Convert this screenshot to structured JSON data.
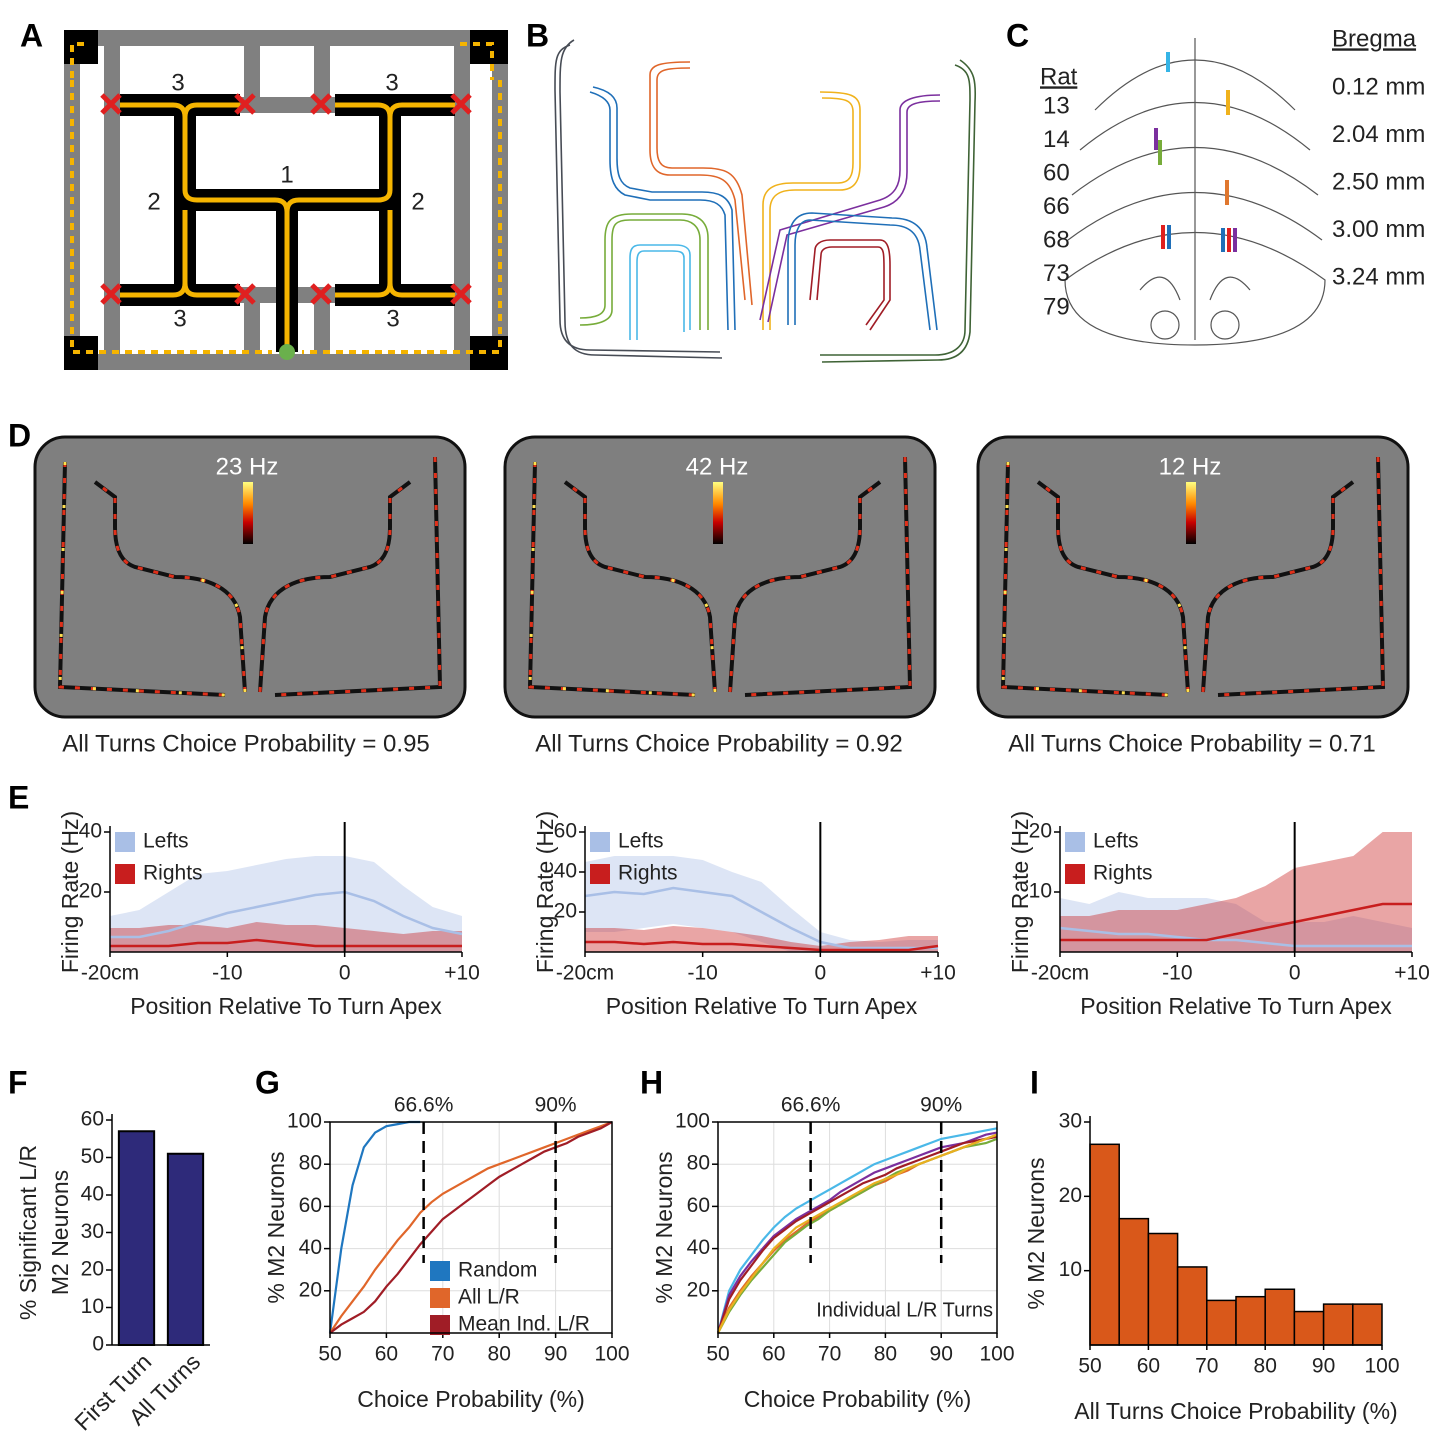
{
  "panel_labels": [
    "A",
    "B",
    "C",
    "D",
    "E",
    "F",
    "G",
    "H",
    "I"
  ],
  "panel_a": {
    "labels": [
      "3",
      "3",
      "2",
      "1",
      "2",
      "3",
      "3"
    ]
  },
  "panel_c": {
    "rat_title": "Rat",
    "rats": [
      {
        "label": "13",
        "color": "#7b2f9e"
      },
      {
        "label": "14",
        "color": "#1f6fb8"
      },
      {
        "label": "60",
        "color": "#35b4e6"
      },
      {
        "label": "66",
        "color": "#77ac3a"
      },
      {
        "label": "68",
        "color": "#f0b21c"
      },
      {
        "label": "73",
        "color": "#e0772e"
      },
      {
        "label": "79",
        "color": "#e0201e"
      }
    ],
    "bregma_title": "Bregma",
    "bregma": [
      "0.12 mm",
      "2.04 mm",
      "2.50 mm",
      "3.00 mm",
      "3.24 mm"
    ]
  },
  "panel_d": [
    {
      "rate": "23 Hz",
      "caption": "All Turns Choice Probability = 0.95"
    },
    {
      "rate": "42 Hz",
      "caption": "All Turns Choice Probability = 0.92"
    },
    {
      "rate": "12 Hz",
      "caption": "All Turns Choice Probability = 0.71"
    }
  ],
  "chart_data": [
    {
      "type": "line",
      "xlabel": "Position Relative To Turn Apex",
      "ylabel": "Firing Rate (Hz)",
      "x": [
        -20,
        -17.5,
        -15,
        -12.5,
        -10,
        -7.5,
        -5,
        -2.5,
        0,
        2.5,
        5,
        7.5,
        10
      ],
      "xlim": [
        -20,
        10
      ],
      "xticks": [
        {
          "value": -20,
          "label": "-20cm"
        },
        -10,
        0,
        {
          "value": 10,
          "label": "+10"
        }
      ],
      "ylim": [
        0,
        40
      ],
      "yticks": [
        20,
        40
      ],
      "vline": 0,
      "legend": "upper left",
      "series": [
        {
          "name": "Lefts",
          "color": "#a9bfe6",
          "values": [
            5,
            5,
            7,
            10,
            13,
            15,
            17,
            19,
            20,
            17,
            12,
            8,
            6
          ],
          "upper": [
            12,
            14,
            20,
            26,
            27,
            29,
            31,
            32,
            32,
            30,
            22,
            15,
            12
          ],
          "lower": [
            0,
            0,
            0,
            0,
            0,
            0,
            0,
            0,
            0,
            0,
            0,
            0,
            0
          ]
        },
        {
          "name": "Rights",
          "color": "#c81e1e",
          "values": [
            2,
            2,
            2,
            3,
            3,
            4,
            3,
            2,
            2,
            2,
            2,
            2,
            2
          ],
          "upper": [
            8,
            8,
            9,
            9,
            8,
            10,
            9,
            9,
            8,
            7,
            6,
            7,
            7
          ],
          "lower": [
            0,
            0,
            0,
            0,
            0,
            0,
            0,
            0,
            0,
            0,
            0,
            0,
            0
          ]
        }
      ]
    },
    {
      "type": "line",
      "xlabel": "Position Relative To Turn Apex",
      "ylabel": "Firing Rate (Hz)",
      "x": [
        -20,
        -17.5,
        -15,
        -12.5,
        -10,
        -7.5,
        -5,
        -2.5,
        0,
        2.5,
        5,
        7.5,
        10
      ],
      "xlim": [
        -20,
        10
      ],
      "xticks": [
        {
          "value": -20,
          "label": "-20cm"
        },
        -10,
        0,
        {
          "value": 10,
          "label": "+10"
        }
      ],
      "ylim": [
        0,
        60
      ],
      "yticks": [
        20,
        40,
        60
      ],
      "vline": 0,
      "legend": "upper left",
      "series": [
        {
          "name": "Lefts",
          "color": "#a9bfe6",
          "values": [
            28,
            30,
            29,
            32,
            30,
            28,
            20,
            12,
            5,
            2,
            2,
            2,
            2
          ],
          "upper": [
            45,
            48,
            48,
            48,
            46,
            40,
            35,
            22,
            10,
            6,
            5,
            6,
            6
          ],
          "lower": [
            10,
            10,
            12,
            14,
            12,
            10,
            5,
            0,
            0,
            0,
            0,
            0,
            0
          ]
        },
        {
          "name": "Rights",
          "color": "#c81e1e",
          "values": [
            5,
            5,
            4,
            5,
            4,
            4,
            3,
            2,
            1,
            1,
            1,
            1,
            3
          ],
          "upper": [
            12,
            12,
            11,
            13,
            12,
            10,
            8,
            5,
            3,
            5,
            6,
            8,
            8
          ],
          "lower": [
            0,
            0,
            0,
            0,
            0,
            0,
            0,
            0,
            0,
            0,
            0,
            0,
            0
          ]
        }
      ]
    },
    {
      "type": "line",
      "xlabel": "Position Relative To Turn Apex",
      "ylabel": "Firing Rate (Hz)",
      "x": [
        -20,
        -17.5,
        -15,
        -12.5,
        -10,
        -7.5,
        -5,
        -2.5,
        0,
        2.5,
        5,
        7.5,
        10
      ],
      "xlim": [
        -20,
        10
      ],
      "xticks": [
        {
          "value": -20,
          "label": "-20cm"
        },
        -10,
        0,
        {
          "value": 10,
          "label": "+10"
        }
      ],
      "ylim": [
        0,
        20
      ],
      "yticks": [
        10,
        20
      ],
      "vline": 0,
      "legend": "upper left",
      "series": [
        {
          "name": "Lefts",
          "color": "#a9bfe6",
          "values": [
            4,
            3.5,
            3,
            3,
            2.5,
            2,
            2,
            1.5,
            1,
            1,
            1,
            1,
            1
          ],
          "upper": [
            9,
            8,
            10,
            9,
            9,
            9,
            8,
            5,
            5,
            5,
            6,
            5,
            4
          ],
          "lower": [
            0,
            0,
            0,
            0,
            0,
            0,
            0,
            0,
            0,
            0,
            0,
            0,
            0
          ]
        },
        {
          "name": "Rights",
          "color": "#c81e1e",
          "values": [
            2,
            2,
            2,
            2,
            2,
            2,
            3,
            4,
            5,
            6,
            7,
            8,
            8
          ],
          "upper": [
            6,
            6,
            7,
            7,
            7,
            8,
            9,
            11,
            14,
            15,
            16,
            20,
            20
          ],
          "lower": [
            0,
            0,
            0,
            0,
            0,
            0,
            0,
            0,
            0,
            0,
            0,
            0,
            0
          ]
        }
      ]
    },
    {
      "type": "bar",
      "ylabel": [
        "% Significant L/R",
        "M2 Neurons"
      ],
      "categories": [
        "First Turn",
        "All Turns"
      ],
      "values": [
        57,
        51
      ],
      "color": "#2e2a7a",
      "ylim": [
        0,
        60
      ],
      "yticks": [
        0,
        10,
        20,
        30,
        40,
        50,
        60
      ]
    },
    {
      "type": "line",
      "xlabel": "Choice Probability (%)",
      "ylabel": "% M2 Neurons",
      "frame": true,
      "grid": true,
      "legend": "lower right",
      "x": [
        50,
        52,
        54,
        56,
        58,
        60,
        62,
        64,
        66,
        68,
        70,
        72,
        74,
        76,
        78,
        80,
        82,
        84,
        86,
        88,
        90,
        92,
        94,
        96,
        98,
        100
      ],
      "xlim": [
        50,
        100
      ],
      "xticks": [
        50,
        60,
        70,
        80,
        90,
        100
      ],
      "ylim": [
        0,
        100
      ],
      "yticks": [
        20,
        40,
        60,
        80,
        100
      ],
      "vlines": [
        {
          "value": 66.6,
          "label": "66.6%"
        },
        {
          "value": 90,
          "label": "90%"
        }
      ],
      "series": [
        {
          "name": "Random",
          "color": "#1f77c0",
          "values": [
            0,
            40,
            70,
            88,
            95,
            98,
            99,
            100,
            100,
            null,
            null,
            null,
            null,
            null,
            null,
            null,
            null,
            null,
            null,
            null,
            null,
            null,
            null,
            null,
            null,
            null
          ]
        },
        {
          "name": "All L/R",
          "color": "#e0662a",
          "values": [
            0,
            8,
            15,
            22,
            30,
            37,
            44,
            50,
            57,
            62,
            66,
            69,
            72,
            75,
            78,
            80,
            82,
            84,
            86,
            88,
            90,
            92,
            94,
            96,
            98,
            100
          ]
        },
        {
          "name": "Mean Ind. L/R",
          "color": "#a01d26",
          "values": [
            0,
            4,
            7,
            10,
            15,
            22,
            28,
            35,
            42,
            48,
            54,
            58,
            62,
            66,
            70,
            74,
            77,
            80,
            83,
            86,
            88,
            90,
            93,
            95,
            97,
            100
          ]
        }
      ]
    },
    {
      "type": "line",
      "xlabel": "Choice Probability (%)",
      "ylabel": "% M2 Neurons",
      "frame": true,
      "grid": true,
      "annotation": "Individual L/R Turns",
      "x": [
        50,
        52,
        54,
        56,
        58,
        60,
        62,
        64,
        66,
        68,
        70,
        72,
        74,
        76,
        78,
        80,
        82,
        84,
        86,
        88,
        90,
        92,
        94,
        96,
        98,
        100
      ],
      "xlim": [
        50,
        100
      ],
      "xticks": [
        50,
        60,
        70,
        80,
        90,
        100
      ],
      "ylim": [
        0,
        100
      ],
      "yticks": [
        20,
        40,
        60,
        80,
        100
      ],
      "vlines": [
        {
          "value": 66.6,
          "label": "66.6%"
        },
        {
          "value": 90,
          "label": "90%"
        }
      ],
      "series": [
        {
          "color": "#4ab8e8",
          "values": [
            0,
            20,
            30,
            37,
            44,
            50,
            55,
            59,
            62,
            65,
            68,
            71,
            74,
            77,
            80,
            82,
            84,
            86,
            88,
            90,
            92,
            93,
            94,
            95,
            96,
            97
          ]
        },
        {
          "color": "#7b2f9e",
          "values": [
            0,
            18,
            27,
            34,
            40,
            46,
            50,
            54,
            57,
            60,
            63,
            67,
            70,
            73,
            76,
            78,
            80,
            82,
            84,
            86,
            88,
            89,
            90,
            92,
            94,
            95
          ]
        },
        {
          "color": "#a01d26",
          "values": [
            0,
            16,
            25,
            32,
            39,
            45,
            49,
            53,
            56,
            59,
            62,
            65,
            68,
            71,
            73,
            75,
            78,
            80,
            82,
            84,
            86,
            88,
            90,
            91,
            92,
            93
          ]
        },
        {
          "color": "#e06a2a",
          "values": [
            0,
            12,
            20,
            27,
            33,
            39,
            44,
            48,
            52,
            55,
            58,
            61,
            64,
            67,
            70,
            72,
            75,
            77,
            80,
            82,
            84,
            86,
            88,
            90,
            92,
            94
          ]
        },
        {
          "color": "#77ac3a",
          "values": [
            0,
            10,
            18,
            25,
            31,
            37,
            43,
            47,
            51,
            54,
            58,
            61,
            64,
            67,
            70,
            73,
            76,
            78,
            80,
            82,
            84,
            86,
            88,
            89,
            90,
            92
          ]
        },
        {
          "color": "#e8b020",
          "values": [
            0,
            11,
            19,
            26,
            33,
            40,
            45,
            50,
            53,
            56,
            59,
            62,
            65,
            68,
            71,
            73,
            75,
            78,
            80,
            82,
            84,
            86,
            88,
            90,
            92,
            94
          ]
        }
      ]
    },
    {
      "type": "histogram",
      "xlabel": "All Turns Choice Probability (%)",
      "ylabel": "% M2 Neurons",
      "color": "#d9581a",
      "bins": [
        50,
        55,
        60,
        65,
        70,
        75,
        80,
        85,
        90,
        95,
        100
      ],
      "values": [
        27,
        17,
        15,
        10.5,
        6,
        6.5,
        7.5,
        4.5,
        5.5,
        5.5
      ],
      "xlim": [
        50,
        100
      ],
      "xticks": [
        50,
        60,
        70,
        80,
        90,
        100
      ],
      "ylim": [
        0,
        30
      ],
      "yticks": [
        10,
        20,
        30
      ]
    }
  ]
}
